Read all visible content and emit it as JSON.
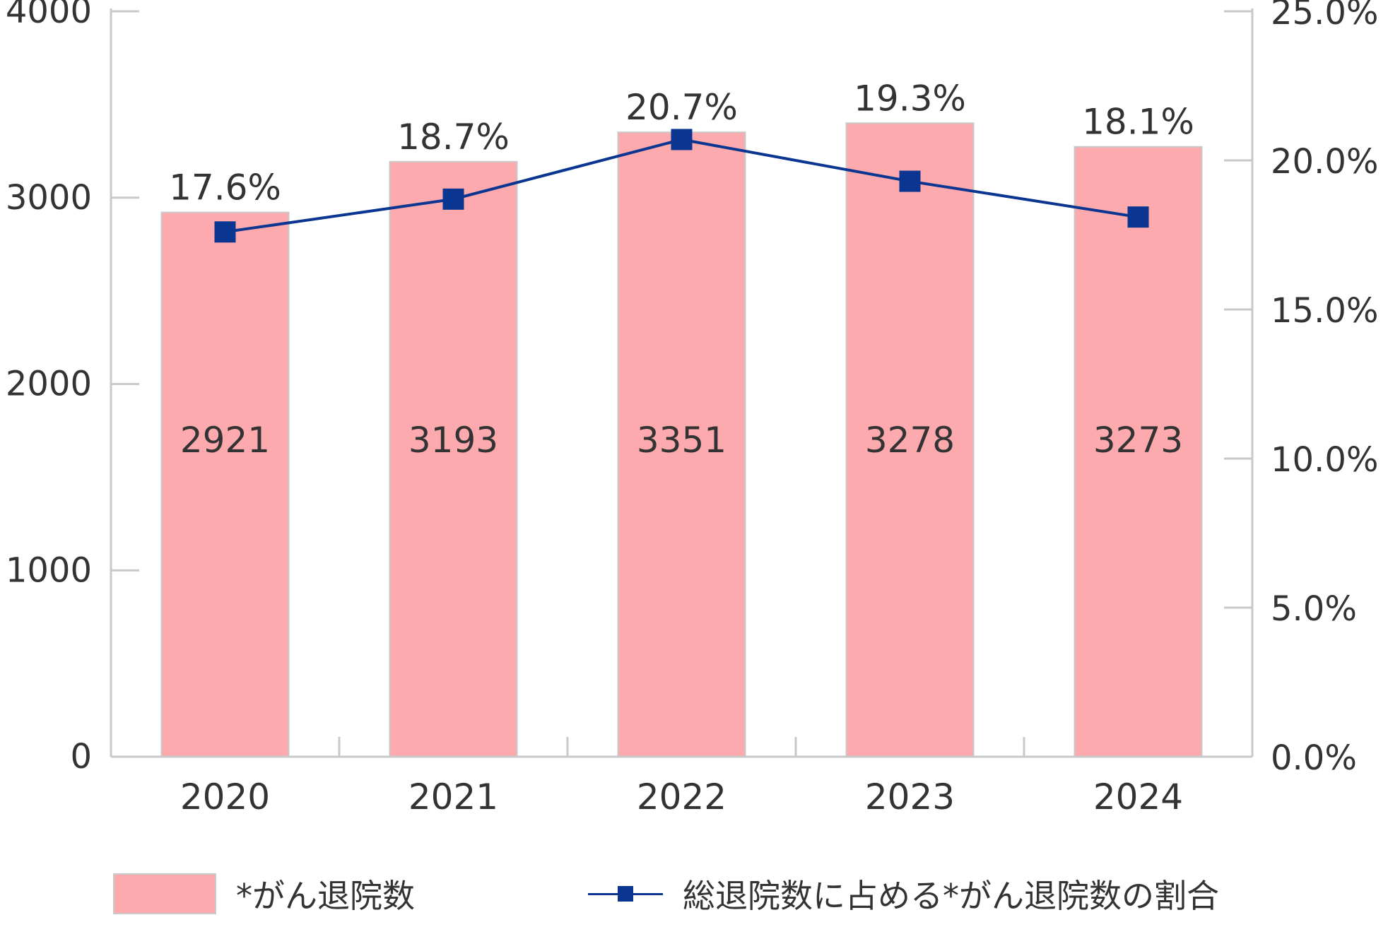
{
  "chart_data": {
    "type": "bar",
    "categories": [
      "2020",
      "2021",
      "2022",
      "2023",
      "2024"
    ],
    "series": [
      {
        "name": "*がん退院数",
        "type": "bar",
        "axis": "left",
        "values": [
          2921,
          3193,
          3351,
          3278,
          3273
        ],
        "data_labels": [
          "2921",
          "3193",
          "3351",
          "3278",
          "3273"
        ],
        "color": "#fcaaae"
      },
      {
        "name": "総退院数に占める*がん退院数の割合",
        "type": "line",
        "axis": "right",
        "values": [
          17.6,
          18.7,
          20.7,
          19.3,
          18.1
        ],
        "data_labels": [
          "17.6%",
          "18.7%",
          "20.7%",
          "19.3%",
          "18.1%"
        ],
        "color": "#0a3591",
        "marker": "square"
      }
    ],
    "bar_label_heights": [
      2921,
      3193,
      3351,
      3400,
      3273
    ],
    "left_axis": {
      "ylim": [
        0,
        4000
      ],
      "ticks": [
        "0",
        "1000",
        "2000",
        "3000",
        "4000"
      ]
    },
    "right_axis": {
      "ylim": [
        0,
        25
      ],
      "ticks": [
        "0.0%",
        "5.0%",
        "10.0%",
        "15.0%",
        "20.0%",
        "25.0%"
      ]
    },
    "legend": {
      "placement": "bottom"
    },
    "grid": false,
    "colors": {
      "axis": "#c9c9c9",
      "text": "#333333",
      "bar_border": "#c9c9c9"
    }
  }
}
